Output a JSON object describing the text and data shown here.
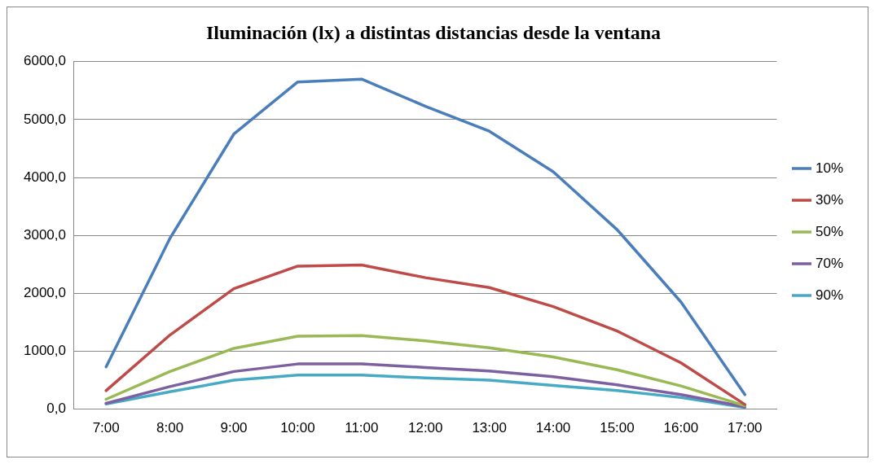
{
  "chart_data": {
    "type": "line",
    "title": "Iluminación (lx) a distintas distancias desde la ventana",
    "categories": [
      "7:00",
      "8:00",
      "9:00",
      "10:00",
      "11:00",
      "12:00",
      "13:00",
      "14:00",
      "15:00",
      "16:00",
      "17:00"
    ],
    "series": [
      {
        "name": "10%",
        "color": "#4a7ebb",
        "values": [
          730,
          2950,
          4750,
          5650,
          5700,
          5230,
          4800,
          4100,
          3100,
          1850,
          250
        ]
      },
      {
        "name": "30%",
        "color": "#be4b48",
        "values": [
          320,
          1280,
          2080,
          2470,
          2490,
          2270,
          2100,
          1770,
          1350,
          800,
          80
        ]
      },
      {
        "name": "50%",
        "color": "#98b954",
        "values": [
          170,
          650,
          1050,
          1260,
          1270,
          1180,
          1060,
          900,
          680,
          400,
          60
        ]
      },
      {
        "name": "70%",
        "color": "#7d60a0",
        "values": [
          100,
          390,
          650,
          780,
          780,
          720,
          660,
          560,
          420,
          250,
          40
        ]
      },
      {
        "name": "90%",
        "color": "#46aac5",
        "values": [
          90,
          300,
          500,
          590,
          590,
          540,
          500,
          410,
          320,
          200,
          30
        ]
      }
    ],
    "ylim": [
      0,
      6000
    ],
    "yticks": [
      {
        "value": 0,
        "label": "0,0"
      },
      {
        "value": 1000,
        "label": "1000,0"
      },
      {
        "value": 2000,
        "label": "2000,0"
      },
      {
        "value": 3000,
        "label": "3000,0"
      },
      {
        "value": 4000,
        "label": "4000,0"
      },
      {
        "value": 5000,
        "label": "5000,0"
      },
      {
        "value": 6000,
        "label": "6000,0"
      }
    ],
    "grid": "y",
    "legend": "right",
    "marker": "none",
    "line_style": "solid"
  }
}
